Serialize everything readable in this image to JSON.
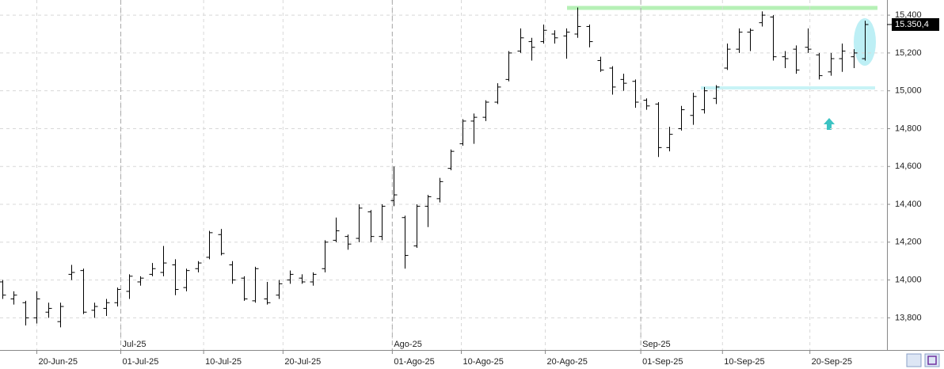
{
  "chart_data": {
    "type": "ohlc",
    "color": "#000000",
    "grid": true,
    "open": [
      13990,
      13900,
      13880,
      13800,
      13830,
      13780,
      14030,
      14050,
      13840,
      13850,
      13880,
      13940,
      13990,
      14030,
      14040,
      14080,
      13960,
      14060,
      14120,
      14240,
      14080,
      14010,
      13890,
      13900,
      13920,
      14000,
      14010,
      13990,
      14060,
      14210,
      14230,
      14220,
      14360,
      14230,
      14420,
      14330,
      14180,
      14390,
      14430,
      14590,
      14720,
      14840,
      14860,
      14940,
      15060,
      15210,
      15260,
      15260,
      15300,
      15290,
      15300,
      15340,
      15160,
      15120,
      15060,
      15050,
      14950,
      14930,
      14700,
      14800,
      14870,
      14900,
      14960,
      15120,
      15220,
      15310,
      15360,
      15390,
      15180,
      15220,
      15230,
      15190,
      15100,
      15170,
      15180,
      15170
    ],
    "high": [
      14000,
      13940,
      13890,
      13940,
      13880,
      13880,
      14080,
      14060,
      13880,
      13900,
      13960,
      14030,
      14020,
      14090,
      14180,
      14110,
      14060,
      14100,
      14260,
      14270,
      14100,
      14020,
      14070,
      13990,
      14000,
      14050,
      14030,
      14040,
      14210,
      14330,
      14240,
      14400,
      14370,
      14400,
      14600,
      14340,
      14400,
      14450,
      14540,
      14690,
      14850,
      14880,
      14950,
      15040,
      15210,
      15330,
      15280,
      15350,
      15320,
      15330,
      15440,
      15350,
      15180,
      15130,
      15090,
      15060,
      14960,
      14940,
      14810,
      14920,
      14990,
      15020,
      15030,
      15250,
      15330,
      15330,
      15420,
      15400,
      15210,
      15240,
      15330,
      15200,
      15200,
      15250,
      15220,
      15370
    ],
    "low": [
      13900,
      13870,
      13760,
      13770,
      13800,
      13750,
      14000,
      13820,
      13800,
      13810,
      13860,
      13900,
      13970,
      14020,
      14020,
      13920,
      13940,
      14040,
      14110,
      14130,
      13980,
      13890,
      13880,
      13870,
      13900,
      13980,
      13980,
      13970,
      14040,
      14200,
      14160,
      14200,
      14200,
      14210,
      14390,
      14060,
      14170,
      14280,
      14410,
      14580,
      14710,
      14720,
      14840,
      14930,
      15050,
      15200,
      15160,
      15250,
      15250,
      15170,
      15280,
      15230,
      15100,
      14980,
      15000,
      14910,
      14900,
      14650,
      14680,
      14790,
      14820,
      14880,
      14930,
      15110,
      15200,
      15210,
      15340,
      15160,
      15120,
      15090,
      15200,
      15060,
      15080,
      15100,
      15120,
      15160
    ],
    "close": [
      13920,
      13920,
      13800,
      13900,
      13850,
      13860,
      14040,
      13830,
      13860,
      13880,
      13950,
      14020,
      14010,
      14060,
      14090,
      13950,
      14050,
      14090,
      14250,
      14140,
      14000,
      13900,
      14060,
      13880,
      13980,
      14030,
      13990,
      14030,
      14200,
      14260,
      14190,
      14380,
      14230,
      14390,
      14450,
      14130,
      14390,
      14440,
      14520,
      14680,
      14840,
      14860,
      14940,
      15020,
      15200,
      15280,
      15230,
      15320,
      15280,
      15310,
      15340,
      15260,
      15110,
      15020,
      15040,
      14940,
      14920,
      14700,
      14770,
      14900,
      14970,
      15000,
      15020,
      15220,
      15310,
      15320,
      15400,
      15180,
      15170,
      15110,
      15220,
      15080,
      15170,
      15210,
      15200,
      15350.4
    ],
    "xlim": [
      -0.2,
      76.9
    ],
    "ylim": [
      13630,
      15480
    ],
    "yticks": [
      {
        "value": 13800,
        "label": "13,800"
      },
      {
        "value": 14000,
        "label": "14,000"
      },
      {
        "value": 14200,
        "label": "14,200"
      },
      {
        "value": 14400,
        "label": "14,400"
      },
      {
        "value": 14600,
        "label": "14,600"
      },
      {
        "value": 14800,
        "label": "14,800"
      },
      {
        "value": 15000,
        "label": "15,000"
      },
      {
        "value": 15200,
        "label": "15,200"
      },
      {
        "value": 15400,
        "label": "15,400"
      }
    ],
    "xticks": [
      {
        "value": 3.0,
        "label": "20-Jun-25"
      },
      {
        "value": 10.3,
        "label": "01-Jul-25"
      },
      {
        "value": 17.5,
        "label": "10-Jul-25"
      },
      {
        "value": 24.4,
        "label": "20-Jul-25"
      },
      {
        "value": 33.9,
        "label": "01-Ago-25"
      },
      {
        "value": 39.9,
        "label": "10-Ago-25"
      },
      {
        "value": 47.2,
        "label": "20-Ago-25"
      },
      {
        "value": 55.5,
        "label": "01-Sep-25"
      },
      {
        "value": 62.6,
        "label": "10-Sep-25"
      },
      {
        "value": 70.2,
        "label": "20-Sep-25"
      }
    ],
    "month_ticks": [
      {
        "value": 10.3,
        "label": "Jul-25"
      },
      {
        "value": 33.9,
        "label": "Ago-25"
      },
      {
        "value": 55.5,
        "label": "Sep-25"
      }
    ],
    "last_price": {
      "value": 15350.4,
      "label": "15.350,4"
    }
  }
}
